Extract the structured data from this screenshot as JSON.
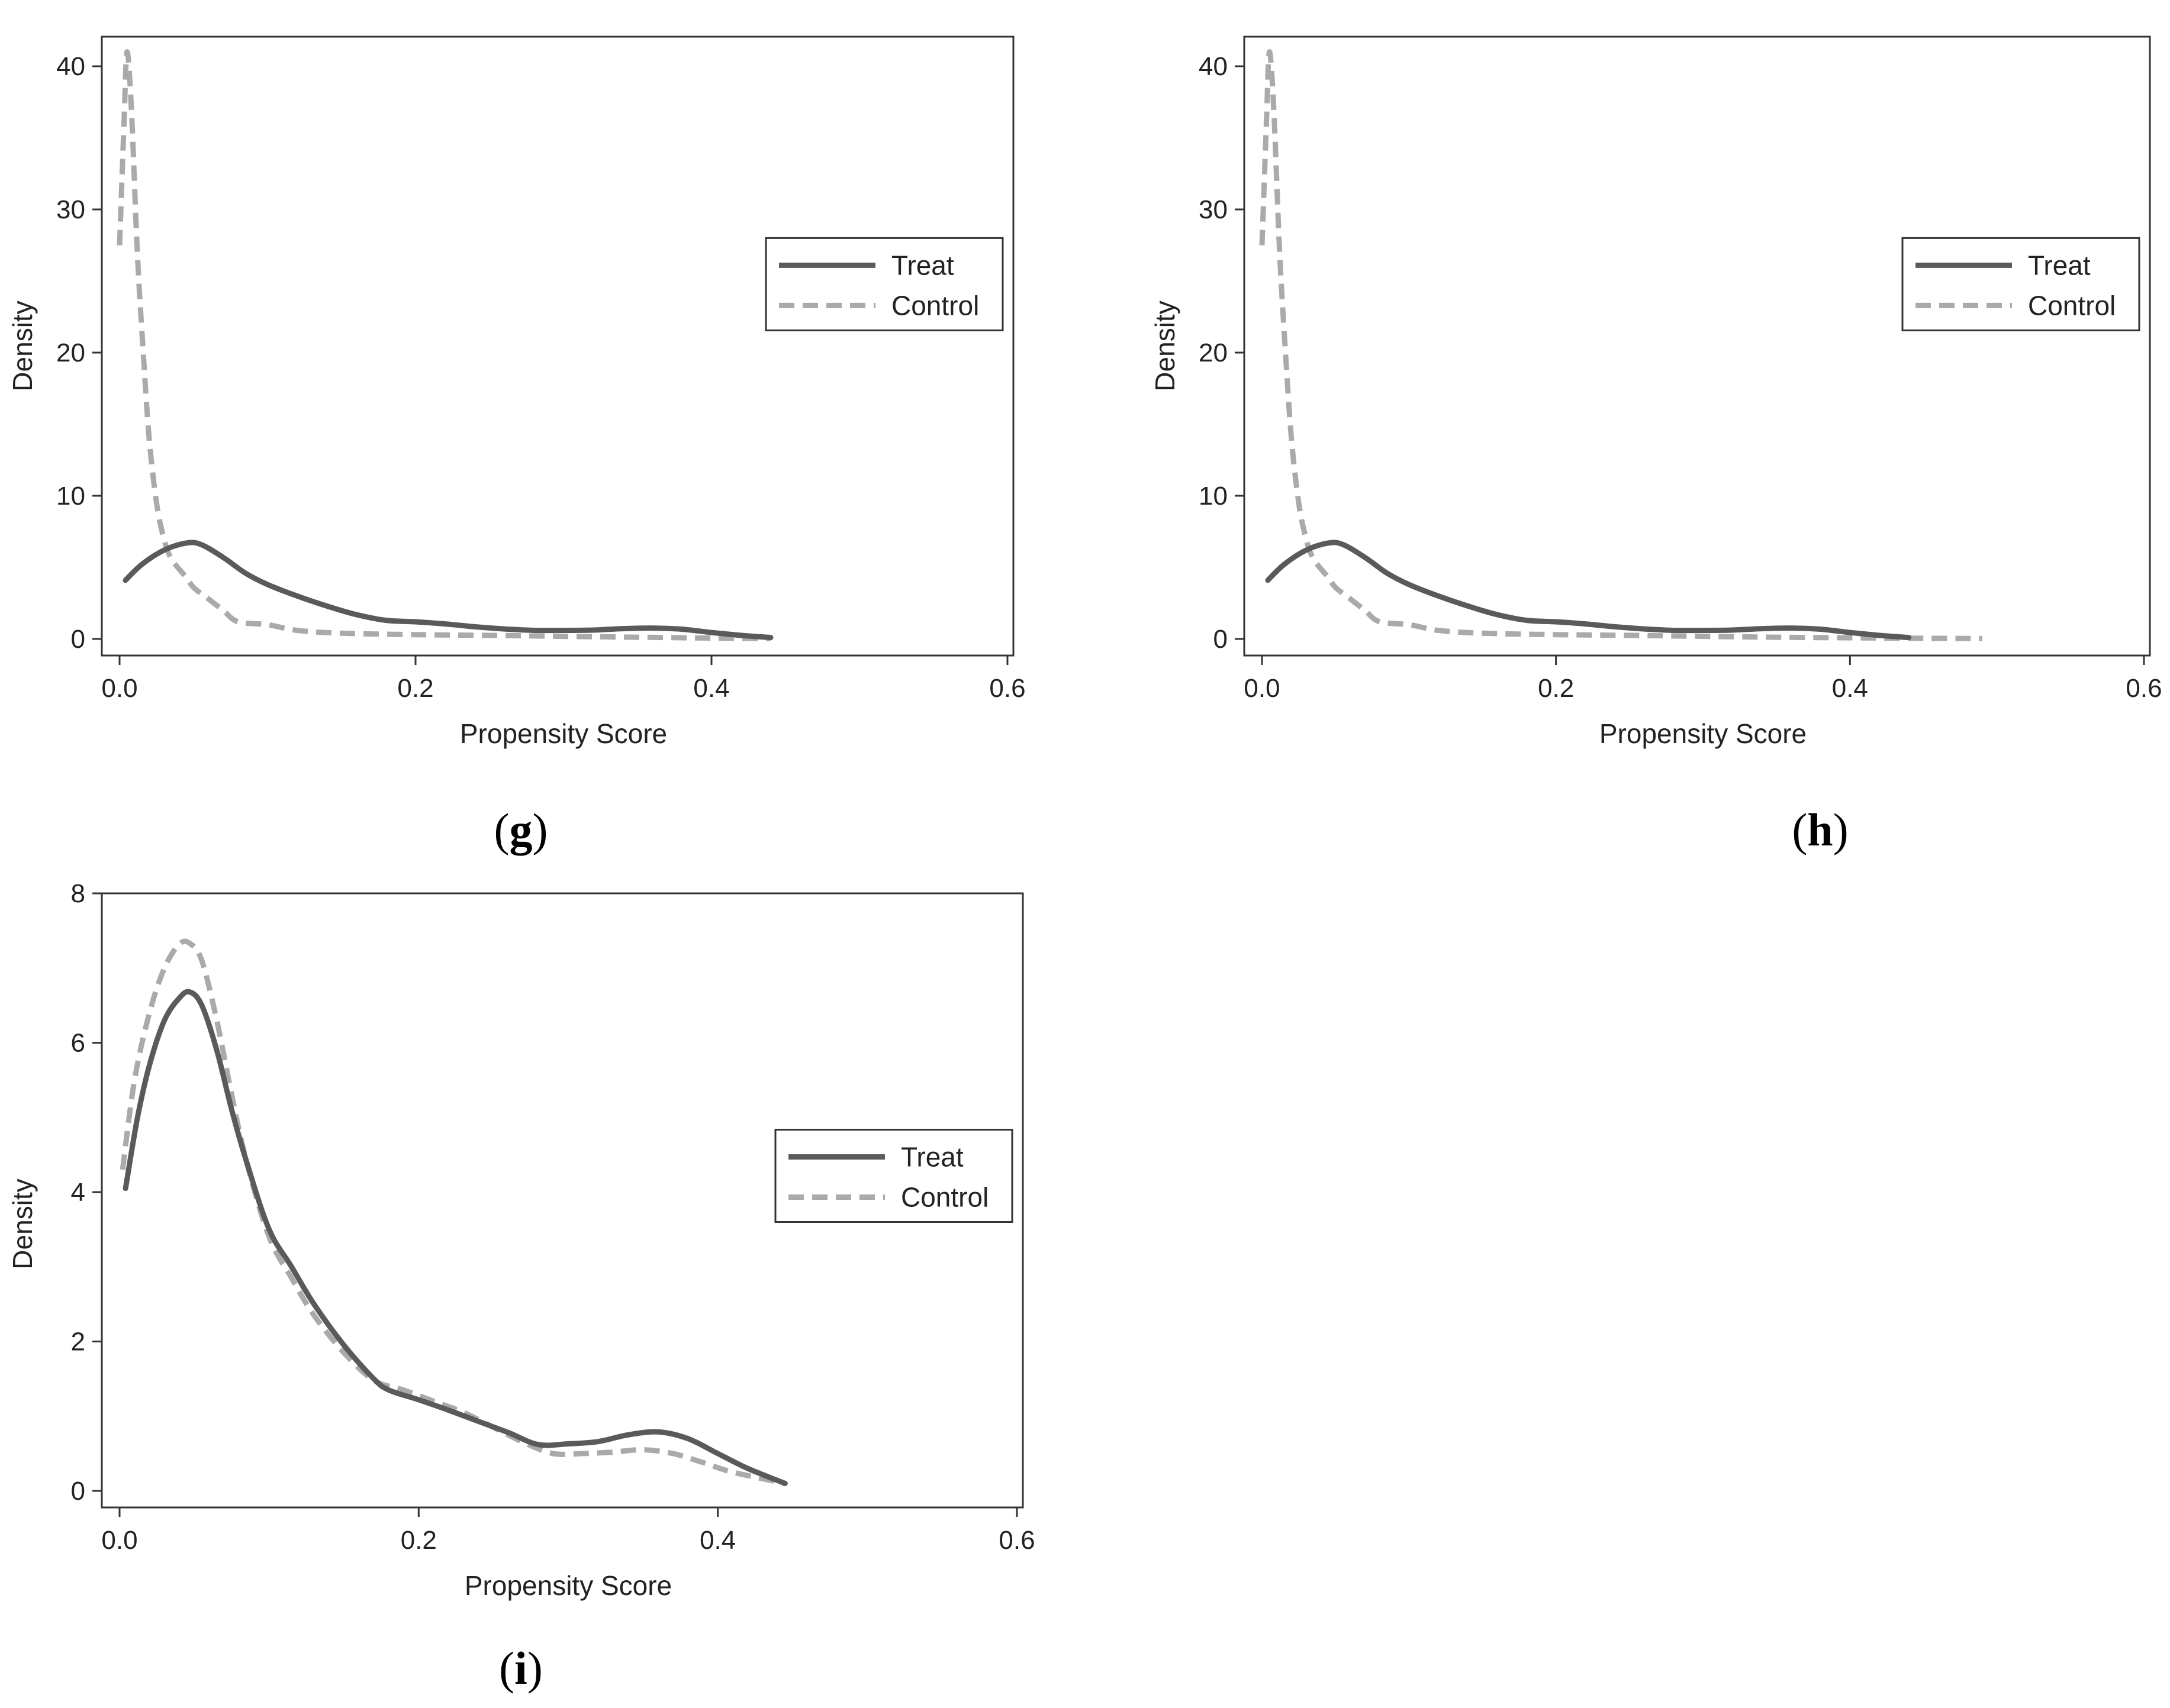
{
  "chart_data": [
    {
      "id": "g",
      "type": "line",
      "caption": "g",
      "xlabel": "Propensity Score",
      "ylabel": "Density",
      "xlim": [
        0,
        0.6
      ],
      "ylim": [
        0,
        41
      ],
      "xticks": [
        "0.0",
        "0.2",
        "0.4",
        "0.6"
      ],
      "xtick_values": [
        0,
        0.2,
        0.4,
        0.6
      ],
      "yticks": [
        "0",
        "10",
        "20",
        "30",
        "40"
      ],
      "ytick_values": [
        0,
        10,
        20,
        30,
        40
      ],
      "legend": "right",
      "series": [
        {
          "name": "Treat",
          "style": "solid",
          "color": "#5a5a5a",
          "points": [
            [
              0.004,
              4.1
            ],
            [
              0.015,
              5.2
            ],
            [
              0.03,
              6.2
            ],
            [
              0.045,
              6.7
            ],
            [
              0.055,
              6.6
            ],
            [
              0.07,
              5.7
            ],
            [
              0.085,
              4.6
            ],
            [
              0.1,
              3.8
            ],
            [
              0.12,
              3.0
            ],
            [
              0.14,
              2.3
            ],
            [
              0.16,
              1.7
            ],
            [
              0.18,
              1.3
            ],
            [
              0.2,
              1.2
            ],
            [
              0.22,
              1.05
            ],
            [
              0.24,
              0.85
            ],
            [
              0.26,
              0.7
            ],
            [
              0.28,
              0.6
            ],
            [
              0.3,
              0.6
            ],
            [
              0.32,
              0.62
            ],
            [
              0.34,
              0.72
            ],
            [
              0.36,
              0.76
            ],
            [
              0.38,
              0.68
            ],
            [
              0.4,
              0.45
            ],
            [
              0.42,
              0.25
            ],
            [
              0.44,
              0.1
            ]
          ]
        },
        {
          "name": "Control",
          "style": "dashed",
          "color": "#aaaaaa",
          "points": [
            [
              0.0,
              27.5
            ],
            [
              0.003,
              36
            ],
            [
              0.005,
              41
            ],
            [
              0.008,
              37
            ],
            [
              0.012,
              27
            ],
            [
              0.016,
              20
            ],
            [
              0.02,
              14
            ],
            [
              0.025,
              9.5
            ],
            [
              0.03,
              7.0
            ],
            [
              0.035,
              5.6
            ],
            [
              0.045,
              4.3
            ],
            [
              0.05,
              3.6
            ],
            [
              0.06,
              2.8
            ],
            [
              0.07,
              2.0
            ],
            [
              0.08,
              1.2
            ],
            [
              0.1,
              1.0
            ],
            [
              0.12,
              0.6
            ],
            [
              0.15,
              0.4
            ],
            [
              0.2,
              0.3
            ],
            [
              0.25,
              0.25
            ],
            [
              0.3,
              0.18
            ],
            [
              0.35,
              0.12
            ],
            [
              0.4,
              0.06
            ],
            [
              0.44,
              0.03
            ]
          ]
        }
      ]
    },
    {
      "id": "h",
      "type": "line",
      "caption": "h",
      "xlabel": "Propensity Score",
      "ylabel": "Density",
      "xlim": [
        0,
        0.6
      ],
      "ylim": [
        0,
        41
      ],
      "xticks": [
        "0.0",
        "0.2",
        "0.4",
        "0.6"
      ],
      "xtick_values": [
        0,
        0.2,
        0.4,
        0.6
      ],
      "yticks": [
        "0",
        "10",
        "20",
        "30",
        "40"
      ],
      "ytick_values": [
        0,
        10,
        20,
        30,
        40
      ],
      "legend": "right",
      "series": [
        {
          "name": "Treat",
          "style": "solid",
          "color": "#5a5a5a",
          "points": [
            [
              0.004,
              4.1
            ],
            [
              0.015,
              5.2
            ],
            [
              0.03,
              6.2
            ],
            [
              0.045,
              6.7
            ],
            [
              0.055,
              6.6
            ],
            [
              0.07,
              5.7
            ],
            [
              0.085,
              4.6
            ],
            [
              0.1,
              3.8
            ],
            [
              0.12,
              3.0
            ],
            [
              0.14,
              2.3
            ],
            [
              0.16,
              1.7
            ],
            [
              0.18,
              1.3
            ],
            [
              0.2,
              1.2
            ],
            [
              0.22,
              1.05
            ],
            [
              0.24,
              0.85
            ],
            [
              0.26,
              0.7
            ],
            [
              0.28,
              0.6
            ],
            [
              0.3,
              0.6
            ],
            [
              0.32,
              0.62
            ],
            [
              0.34,
              0.72
            ],
            [
              0.36,
              0.76
            ],
            [
              0.38,
              0.68
            ],
            [
              0.4,
              0.45
            ],
            [
              0.42,
              0.25
            ],
            [
              0.44,
              0.1
            ]
          ]
        },
        {
          "name": "Control",
          "style": "dashed",
          "color": "#aaaaaa",
          "points": [
            [
              0.0,
              27.5
            ],
            [
              0.003,
              36
            ],
            [
              0.005,
              41
            ],
            [
              0.008,
              37
            ],
            [
              0.012,
              27
            ],
            [
              0.016,
              20
            ],
            [
              0.02,
              14
            ],
            [
              0.025,
              9.5
            ],
            [
              0.03,
              7.0
            ],
            [
              0.035,
              5.6
            ],
            [
              0.045,
              4.3
            ],
            [
              0.05,
              3.6
            ],
            [
              0.06,
              2.8
            ],
            [
              0.07,
              2.0
            ],
            [
              0.08,
              1.2
            ],
            [
              0.1,
              1.0
            ],
            [
              0.12,
              0.6
            ],
            [
              0.15,
              0.4
            ],
            [
              0.2,
              0.3
            ],
            [
              0.25,
              0.25
            ],
            [
              0.3,
              0.18
            ],
            [
              0.35,
              0.12
            ],
            [
              0.4,
              0.08
            ],
            [
              0.44,
              0.05
            ],
            [
              0.49,
              0.03
            ]
          ]
        }
      ]
    },
    {
      "id": "i",
      "type": "line",
      "caption": "i",
      "xlabel": "Propensity Score",
      "ylabel": "Density",
      "xlim": [
        0,
        0.6
      ],
      "ylim": [
        0,
        8
      ],
      "xticks": [
        "0.0",
        "0.2",
        "0.4",
        "0.6"
      ],
      "xtick_values": [
        0,
        0.2,
        0.4,
        0.6
      ],
      "yticks": [
        "0",
        "2",
        "4",
        "6",
        "8"
      ],
      "ytick_values": [
        0,
        2,
        4,
        6,
        8
      ],
      "legend": "right",
      "series": [
        {
          "name": "Treat",
          "style": "solid",
          "color": "#5a5a5a",
          "points": [
            [
              0.004,
              4.05
            ],
            [
              0.012,
              5.0
            ],
            [
              0.02,
              5.7
            ],
            [
              0.03,
              6.3
            ],
            [
              0.04,
              6.6
            ],
            [
              0.047,
              6.68
            ],
            [
              0.055,
              6.5
            ],
            [
              0.065,
              5.9
            ],
            [
              0.075,
              5.1
            ],
            [
              0.085,
              4.4
            ],
            [
              0.1,
              3.5
            ],
            [
              0.115,
              3.0
            ],
            [
              0.13,
              2.5
            ],
            [
              0.15,
              1.95
            ],
            [
              0.17,
              1.5
            ],
            [
              0.18,
              1.35
            ],
            [
              0.2,
              1.22
            ],
            [
              0.22,
              1.08
            ],
            [
              0.24,
              0.93
            ],
            [
              0.26,
              0.78
            ],
            [
              0.28,
              0.62
            ],
            [
              0.3,
              0.63
            ],
            [
              0.32,
              0.66
            ],
            [
              0.34,
              0.75
            ],
            [
              0.36,
              0.79
            ],
            [
              0.38,
              0.7
            ],
            [
              0.4,
              0.5
            ],
            [
              0.42,
              0.3
            ],
            [
              0.445,
              0.1
            ]
          ]
        },
        {
          "name": "Control",
          "style": "dashed",
          "color": "#aaaaaa",
          "points": [
            [
              0.002,
              4.3
            ],
            [
              0.01,
              5.5
            ],
            [
              0.02,
              6.4
            ],
            [
              0.03,
              7.0
            ],
            [
              0.04,
              7.32
            ],
            [
              0.047,
              7.33
            ],
            [
              0.055,
              7.1
            ],
            [
              0.065,
              6.3
            ],
            [
              0.075,
              5.3
            ],
            [
              0.085,
              4.4
            ],
            [
              0.1,
              3.4
            ],
            [
              0.115,
              2.85
            ],
            [
              0.13,
              2.35
            ],
            [
              0.15,
              1.85
            ],
            [
              0.17,
              1.48
            ],
            [
              0.19,
              1.35
            ],
            [
              0.21,
              1.2
            ],
            [
              0.23,
              1.05
            ],
            [
              0.25,
              0.85
            ],
            [
              0.27,
              0.65
            ],
            [
              0.29,
              0.5
            ],
            [
              0.31,
              0.5
            ],
            [
              0.33,
              0.52
            ],
            [
              0.35,
              0.55
            ],
            [
              0.37,
              0.5
            ],
            [
              0.39,
              0.38
            ],
            [
              0.41,
              0.25
            ],
            [
              0.445,
              0.1
            ]
          ]
        }
      ]
    }
  ]
}
